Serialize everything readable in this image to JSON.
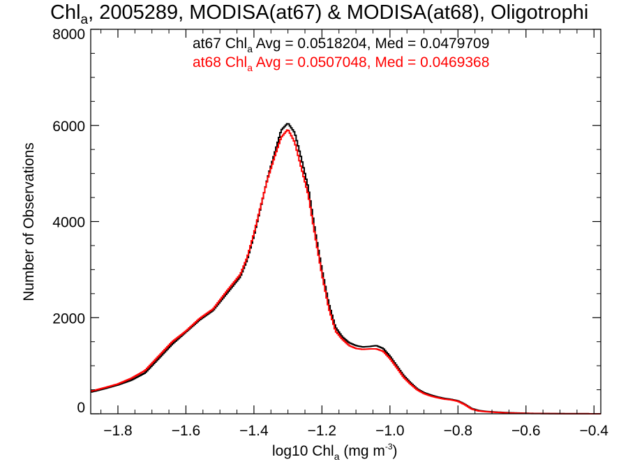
{
  "chart_data": {
    "type": "line",
    "title": {
      "prefix": "Chl",
      "sub": "a",
      "rest": ", 2005289, MODISA(at67) & MODISA(at68), Oligotrophi"
    },
    "xlabel": {
      "prefix": "log10 Chl",
      "sub": "a",
      "rest": " (mg m",
      "sup": "-3",
      "end": ")"
    },
    "ylabel": "Number of Observations",
    "xlim": [
      -1.88,
      -0.38
    ],
    "ylim": [
      0,
      8000
    ],
    "x_ticks": [
      -1.8,
      -1.6,
      -1.4,
      -1.2,
      -1.0,
      -0.8,
      -0.6,
      -0.4
    ],
    "x_tick_labels": [
      "−1.8",
      "−1.6",
      "−1.4",
      "−1.2",
      "−1.0",
      "−0.8",
      "−0.6",
      "−0.4"
    ],
    "y_ticks": [
      0,
      2000,
      4000,
      6000,
      8000
    ],
    "y_tick_labels": [
      "0",
      "2000",
      "4000",
      "6000",
      "8000"
    ],
    "grid": false,
    "legend_position": "top-center",
    "annotations": [
      {
        "prefix": "at67 Chl",
        "sub": "a",
        "rest": " Avg = 0.0518204, Med = 0.0479709",
        "color": "#000000"
      },
      {
        "prefix": "at68 Chl",
        "sub": "a",
        "rest": " Avg = 0.0507048, Med = 0.0469368",
        "color": "#ff0000"
      }
    ],
    "series": [
      {
        "color": "#000000",
        "points": [
          [
            -1.88,
            450
          ],
          [
            -1.84,
            520
          ],
          [
            -1.8,
            600
          ],
          [
            -1.76,
            700
          ],
          [
            -1.72,
            850
          ],
          [
            -1.68,
            1150
          ],
          [
            -1.64,
            1450
          ],
          [
            -1.6,
            1700
          ],
          [
            -1.56,
            1950
          ],
          [
            -1.52,
            2150
          ],
          [
            -1.48,
            2500
          ],
          [
            -1.44,
            2850
          ],
          [
            -1.42,
            3200
          ],
          [
            -1.4,
            3700
          ],
          [
            -1.38,
            4300
          ],
          [
            -1.36,
            4900
          ],
          [
            -1.34,
            5400
          ],
          [
            -1.32,
            5900
          ],
          [
            -1.3,
            6050
          ],
          [
            -1.28,
            5850
          ],
          [
            -1.26,
            5300
          ],
          [
            -1.24,
            4700
          ],
          [
            -1.22,
            3800
          ],
          [
            -1.2,
            3000
          ],
          [
            -1.18,
            2300
          ],
          [
            -1.16,
            1800
          ],
          [
            -1.14,
            1600
          ],
          [
            -1.12,
            1480
          ],
          [
            -1.1,
            1420
          ],
          [
            -1.08,
            1390
          ],
          [
            -1.06,
            1400
          ],
          [
            -1.04,
            1420
          ],
          [
            -1.02,
            1360
          ],
          [
            -1.0,
            1200
          ],
          [
            -0.98,
            1000
          ],
          [
            -0.96,
            800
          ],
          [
            -0.94,
            650
          ],
          [
            -0.92,
            520
          ],
          [
            -0.9,
            440
          ],
          [
            -0.88,
            390
          ],
          [
            -0.86,
            350
          ],
          [
            -0.84,
            320
          ],
          [
            -0.82,
            300
          ],
          [
            -0.8,
            270
          ],
          [
            -0.78,
            200
          ],
          [
            -0.76,
            110
          ],
          [
            -0.74,
            70
          ],
          [
            -0.72,
            50
          ],
          [
            -0.7,
            40
          ],
          [
            -0.66,
            25
          ],
          [
            -0.62,
            15
          ],
          [
            -0.58,
            8
          ],
          [
            -0.54,
            5
          ],
          [
            -0.5,
            3
          ],
          [
            -0.46,
            2
          ],
          [
            -0.42,
            1
          ],
          [
            -0.38,
            0
          ]
        ]
      },
      {
        "color": "#ff0000",
        "points": [
          [
            -1.88,
            470
          ],
          [
            -1.84,
            540
          ],
          [
            -1.8,
            620
          ],
          [
            -1.76,
            740
          ],
          [
            -1.72,
            900
          ],
          [
            -1.68,
            1200
          ],
          [
            -1.64,
            1500
          ],
          [
            -1.6,
            1720
          ],
          [
            -1.56,
            1980
          ],
          [
            -1.52,
            2180
          ],
          [
            -1.48,
            2550
          ],
          [
            -1.44,
            2900
          ],
          [
            -1.42,
            3250
          ],
          [
            -1.4,
            3750
          ],
          [
            -1.38,
            4320
          ],
          [
            -1.36,
            4880
          ],
          [
            -1.34,
            5330
          ],
          [
            -1.32,
            5750
          ],
          [
            -1.3,
            5920
          ],
          [
            -1.28,
            5650
          ],
          [
            -1.26,
            5100
          ],
          [
            -1.24,
            4550
          ],
          [
            -1.22,
            3700
          ],
          [
            -1.2,
            2900
          ],
          [
            -1.18,
            2200
          ],
          [
            -1.16,
            1720
          ],
          [
            -1.14,
            1550
          ],
          [
            -1.12,
            1420
          ],
          [
            -1.1,
            1360
          ],
          [
            -1.08,
            1340
          ],
          [
            -1.06,
            1350
          ],
          [
            -1.04,
            1350
          ],
          [
            -1.02,
            1300
          ],
          [
            -1.0,
            1150
          ],
          [
            -0.98,
            960
          ],
          [
            -0.96,
            760
          ],
          [
            -0.94,
            620
          ],
          [
            -0.92,
            500
          ],
          [
            -0.9,
            420
          ],
          [
            -0.88,
            370
          ],
          [
            -0.86,
            335
          ],
          [
            -0.84,
            305
          ],
          [
            -0.82,
            290
          ],
          [
            -0.8,
            260
          ],
          [
            -0.78,
            190
          ],
          [
            -0.76,
            100
          ],
          [
            -0.74,
            60
          ],
          [
            -0.72,
            45
          ],
          [
            -0.7,
            35
          ],
          [
            -0.66,
            20
          ],
          [
            -0.62,
            12
          ],
          [
            -0.58,
            6
          ],
          [
            -0.54,
            4
          ],
          [
            -0.5,
            2
          ],
          [
            -0.46,
            1
          ],
          [
            -0.42,
            1
          ],
          [
            -0.38,
            0
          ]
        ]
      }
    ]
  }
}
